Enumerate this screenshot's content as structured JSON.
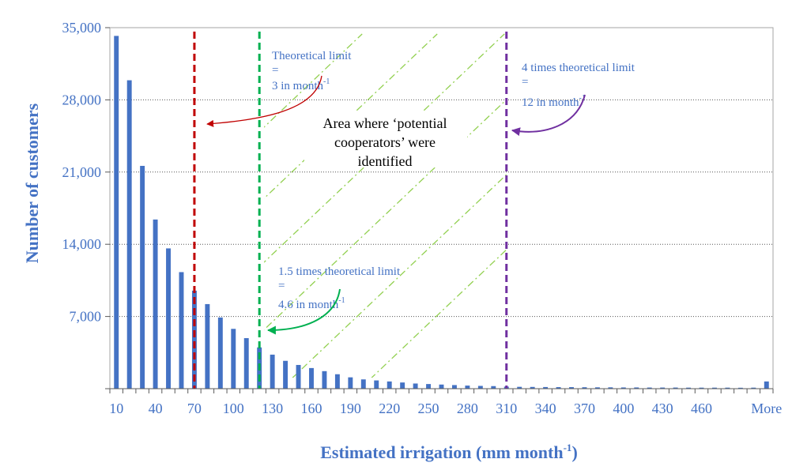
{
  "chart_data": {
    "type": "bar",
    "xlabel": "Estimated irrigation (mm month",
    "xlabel_sup": "-1",
    "xlabel_end": ")",
    "ylabel": "Number of customers",
    "ylim": [
      0,
      35000
    ],
    "yticks": [
      0,
      7000,
      14000,
      21000,
      28000,
      35000
    ],
    "ytick_labels": [
      "",
      "7,000",
      "14,000",
      "21,000",
      "28,000",
      "35,000"
    ],
    "categories": [
      "10",
      "20",
      "30",
      "40",
      "50",
      "60",
      "70",
      "80",
      "90",
      "100",
      "110",
      "120",
      "130",
      "140",
      "150",
      "160",
      "170",
      "180",
      "190",
      "200",
      "210",
      "220",
      "230",
      "240",
      "250",
      "260",
      "270",
      "280",
      "290",
      "300",
      "310",
      "320",
      "330",
      "340",
      "350",
      "360",
      "370",
      "380",
      "390",
      "400",
      "410",
      "420",
      "430",
      "440",
      "450",
      "460",
      "470",
      "480",
      "490",
      "500",
      "More"
    ],
    "xtick_labels": [
      "10",
      "40",
      "70",
      "100",
      "130",
      "160",
      "190",
      "220",
      "250",
      "280",
      "310",
      "340",
      "370",
      "400",
      "430",
      "460",
      "More"
    ],
    "xtick_indices": [
      0,
      3,
      6,
      9,
      12,
      15,
      18,
      21,
      24,
      27,
      30,
      33,
      36,
      39,
      42,
      45,
      50
    ],
    "values": [
      34200,
      29900,
      21600,
      16400,
      13600,
      11300,
      9500,
      8200,
      6900,
      5800,
      4900,
      4000,
      3300,
      2700,
      2300,
      2000,
      1700,
      1400,
      1100,
      900,
      800,
      700,
      600,
      500,
      450,
      400,
      350,
      300,
      270,
      250,
      200,
      180,
      170,
      160,
      150,
      150,
      140,
      130,
      130,
      120,
      120,
      110,
      110,
      110,
      100,
      100,
      100,
      100,
      90,
      100,
      700
    ],
    "bar_color": "#4472c4",
    "grid": "horizontal dotted",
    "vlines": [
      {
        "x": 70,
        "color": "#c00000"
      },
      {
        "x": 120,
        "color": "#00b050"
      },
      {
        "x": 310,
        "color": "#7030a0"
      }
    ],
    "hatch_color": "#92d050",
    "annotations": {
      "limit": {
        "line1": "Theoretical limit",
        "line2": "=",
        "line3": "3 in month",
        "sup": "-1",
        "arrow_color": "#c00000"
      },
      "limit15": {
        "line1": "1.5 times theoretical limit",
        "line2": "=",
        "line3": "4.6 in month",
        "sup": "-1",
        "arrow_color": "#00b050"
      },
      "limit4": {
        "line1": "4 times theoretical limit",
        "line2": "=",
        "line3": "12 in month",
        "sup": "-1",
        "arrow_color": "#7030a0"
      },
      "area": {
        "line1": "Area where ‘potential",
        "line2": "cooperators’ were",
        "line3": "identified"
      }
    }
  }
}
